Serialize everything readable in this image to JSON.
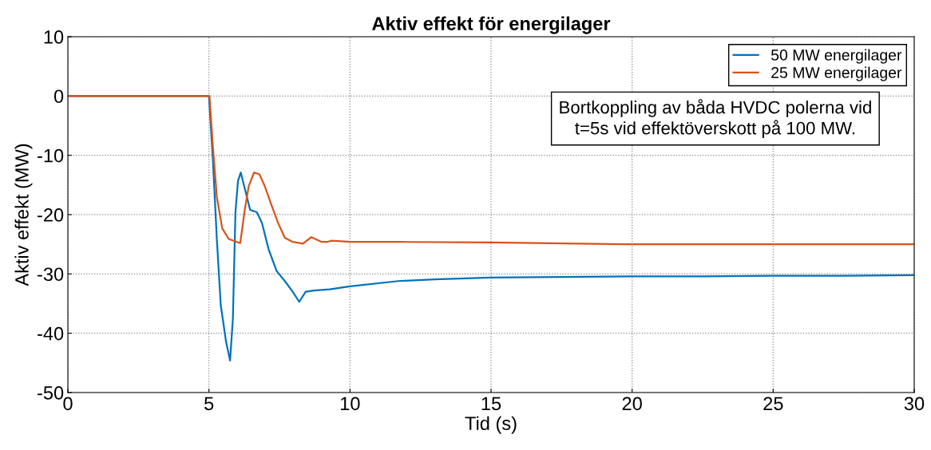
{
  "chart_data": {
    "type": "line",
    "title": "Aktiv effekt för energilager",
    "xlabel": "Tid (s)",
    "ylabel": "Aktiv effekt (MW)",
    "xlim": [
      0,
      30
    ],
    "ylim": [
      -50,
      10
    ],
    "xticks": [
      0,
      5,
      10,
      15,
      20,
      25,
      30
    ],
    "yticks": [
      -50,
      -40,
      -30,
      -20,
      -10,
      0,
      10
    ],
    "grid": true,
    "legend": "top right",
    "line_style": "solid",
    "marker": "none",
    "annotations": [
      "Bortkoppling av båda HVDC polerna vid\nt=5s vid effektöverskott på 100 MW."
    ],
    "series": [
      {
        "name": "50 MW energilager",
        "color": "#0072bd",
        "x": [
          0,
          5,
          5.14,
          5.28,
          5.42,
          5.61,
          5.75,
          5.85,
          5.94,
          6.03,
          6.13,
          6.27,
          6.46,
          6.7,
          6.88,
          7.12,
          7.4,
          7.69,
          7.97,
          8.2,
          8.43,
          8.72,
          9.28,
          10,
          11.72,
          13,
          15,
          17.5,
          20,
          22.5,
          25,
          27.5,
          30
        ],
        "values": [
          0,
          0,
          -10.7,
          -24.1,
          -35.3,
          -41.5,
          -44.6,
          -37.5,
          -19.6,
          -14.3,
          -12.9,
          -15.6,
          -19.2,
          -19.6,
          -21.4,
          -25.9,
          -29.5,
          -31.2,
          -33,
          -34.7,
          -33,
          -32.8,
          -32.6,
          -32.1,
          -31.2,
          -30.9,
          -30.6,
          -30.5,
          -30.4,
          -30.4,
          -30.3,
          -30.3,
          -30.2
        ]
      },
      {
        "name": "25 MW energilager",
        "color": "#d95319",
        "x": [
          0,
          5.02,
          5.14,
          5.28,
          5.47,
          5.7,
          6.11,
          6.27,
          6.41,
          6.6,
          6.79,
          6.98,
          7.21,
          7.45,
          7.69,
          7.97,
          8.33,
          8.63,
          9,
          9.19,
          9.33,
          10.03,
          11.72,
          15,
          20,
          25,
          30
        ],
        "values": [
          0,
          0,
          -8.5,
          -17,
          -22.3,
          -24.1,
          -24.8,
          -19.2,
          -15.2,
          -12.9,
          -13.2,
          -15.2,
          -18.3,
          -21.4,
          -23.9,
          -24.6,
          -24.9,
          -23.8,
          -24.6,
          -24.6,
          -24.4,
          -24.6,
          -24.6,
          -24.7,
          -25,
          -25,
          -25
        ]
      }
    ]
  }
}
